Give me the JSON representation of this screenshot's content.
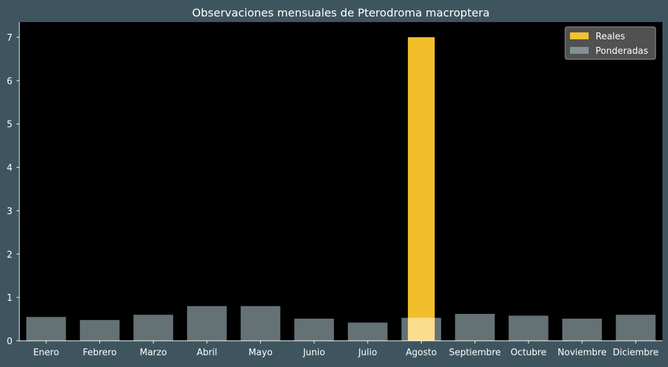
{
  "chart_data": {
    "type": "bar",
    "title": "Observaciones mensuales de Pterodroma macroptera",
    "xlabel": "",
    "ylabel": "",
    "categories": [
      "Enero",
      "Febrero",
      "Marzo",
      "Abril",
      "Mayo",
      "Junio",
      "Julio",
      "Agosto",
      "Septiembre",
      "Octubre",
      "Noviembre",
      "Diciembre"
    ],
    "series": [
      {
        "name": "Reales",
        "color": "#ffc72c",
        "values": [
          0,
          0,
          0,
          0,
          0,
          0,
          0,
          7,
          0,
          0,
          0,
          0
        ]
      },
      {
        "name": "Ponderadas",
        "color": "#8fa3a8",
        "values": [
          0.55,
          0.48,
          0.6,
          0.8,
          0.8,
          0.51,
          0.42,
          0.53,
          0.62,
          0.58,
          0.51,
          0.6
        ]
      }
    ],
    "ylim": [
      0,
      7.35
    ],
    "yticks": [
      0,
      1,
      2,
      3,
      4,
      5,
      6,
      7
    ],
    "grid": false,
    "legend_position": "top-right",
    "colors": {
      "figure_background": "#3e5560",
      "plot_background": "#000000",
      "text": "#ffffff"
    }
  }
}
